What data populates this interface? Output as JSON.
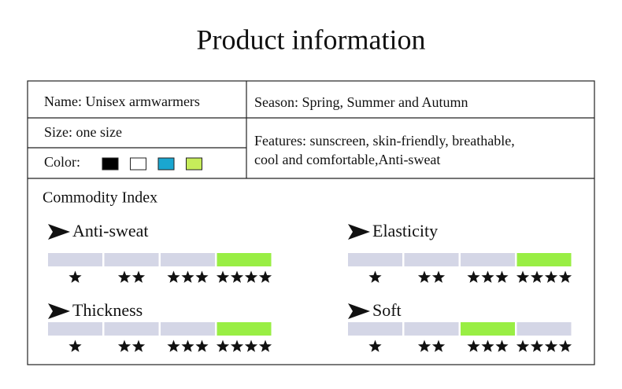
{
  "header": {
    "title": "Product information"
  },
  "info": {
    "name": "Name: Unisex armwarmers",
    "season": "Season: Spring, Summer and Autumn",
    "size": "Size: one size",
    "color_label": "Color:",
    "colors": [
      "#000000",
      "#ffffff",
      "#1aa6d0",
      "#c6ec5a"
    ],
    "features": [
      "Features: sunscreen, skin-friendly, breathable,",
      "cool and comfortable,Anti-sweat"
    ]
  },
  "index": {
    "title": "Commodity Index",
    "items": [
      {
        "label": "Anti-sweat",
        "level": 4
      },
      {
        "label": "Elasticity",
        "level": 4
      },
      {
        "label": "Thickness",
        "level": 4
      },
      {
        "label": "Soft",
        "level": 3
      }
    ]
  }
}
